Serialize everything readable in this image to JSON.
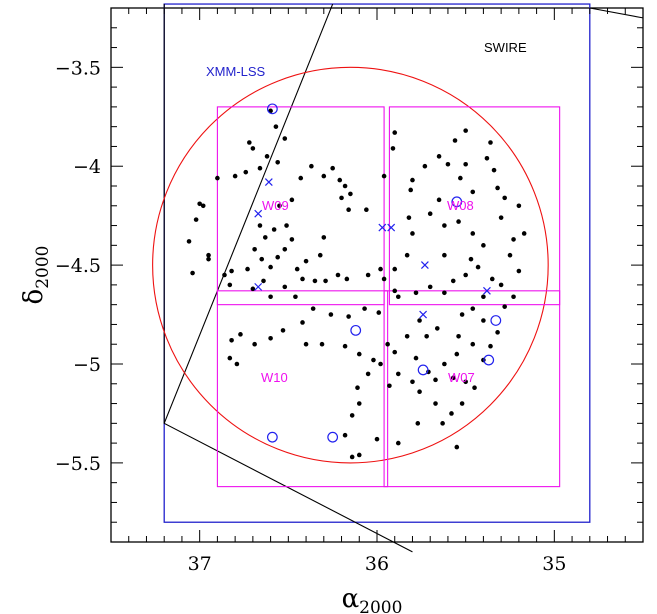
{
  "chart_data": {
    "type": "scatter",
    "x_axis": {
      "symbol": "α",
      "subscript": "2000",
      "range": [
        37.5,
        34.5
      ],
      "tick_values": [
        37,
        36,
        35
      ],
      "tick_labels": [
        "37",
        "36",
        "35"
      ]
    },
    "y_axis": {
      "symbol": "δ",
      "subscript": "2000",
      "range": [
        -5.9,
        -3.2
      ],
      "tick_values": [
        -3.5,
        -4,
        -4.5,
        -5,
        -5.5
      ],
      "tick_labels": [
        "−3.5",
        "−4",
        "−4.5",
        "−5",
        "−5.5"
      ]
    },
    "grid": false,
    "regions": [
      {
        "label": "XMM-LSS",
        "color": "#2222cc",
        "ra": [
          37.2,
          34.8
        ],
        "dec": [
          -5.8,
          -3.18
        ]
      },
      {
        "label": "SWIRE",
        "color": "#000000",
        "polygon": [
          [
            37.2,
            -3.18
          ],
          [
            37.2,
            -5.3
          ],
          [
            35.8,
            -5.95
          ]
        ],
        "line_upper": [
          [
            36.25,
            -3.18
          ],
          [
            37.2,
            -5.3
          ]
        ],
        "line_right": [
          [
            34.8,
            -3.2
          ],
          [
            34.5,
            -3.25
          ]
        ]
      }
    ],
    "circle": {
      "center": [
        36.15,
        -4.5
      ],
      "radius_dec": 1.0,
      "color": "#ee1111"
    },
    "pointings": [
      {
        "label": "W09",
        "ra": [
          36.9,
          35.96
        ],
        "dec": [
          -4.7,
          -3.7
        ]
      },
      {
        "label": "W08",
        "ra": [
          35.93,
          34.97
        ],
        "dec": [
          -4.7,
          -3.7
        ]
      },
      {
        "label": "W10",
        "ra": [
          36.9,
          35.94
        ],
        "dec": [
          -5.62,
          -4.63
        ]
      },
      {
        "label": "W07",
        "ra": [
          35.96,
          34.97
        ],
        "dec": [
          -5.62,
          -4.63
        ]
      }
    ],
    "pointing_color": "#ee11ee",
    "labels": {
      "xmm": "XMM-LSS",
      "swire": "SWIRE",
      "w09": "W09",
      "w08": "W08",
      "w10": "W10",
      "w07": "W07"
    },
    "series": [
      {
        "marker": "dot",
        "color": "#000000",
        "points": [
          [
            36.6,
            -3.72
          ],
          [
            36.57,
            -3.8
          ],
          [
            36.52,
            -3.86
          ],
          [
            36.72,
            -3.88
          ],
          [
            36.7,
            -3.91
          ],
          [
            36.62,
            -3.95
          ],
          [
            36.56,
            -3.98
          ],
          [
            36.66,
            -4.01
          ],
          [
            36.74,
            -4.03
          ],
          [
            36.8,
            -4.05
          ],
          [
            36.9,
            -4.06
          ],
          [
            36.98,
            -4.2
          ],
          [
            37.02,
            -4.27
          ],
          [
            37.06,
            -4.38
          ],
          [
            36.95,
            -4.47
          ],
          [
            36.86,
            -4.55
          ],
          [
            36.82,
            -4.53
          ],
          [
            36.73,
            -4.52
          ],
          [
            36.69,
            -4.42
          ],
          [
            36.65,
            -4.47
          ],
          [
            36.6,
            -4.51
          ],
          [
            36.56,
            -4.46
          ],
          [
            36.52,
            -4.42
          ],
          [
            36.48,
            -4.37
          ],
          [
            36.51,
            -4.3
          ],
          [
            36.66,
            -4.3
          ],
          [
            36.63,
            -4.36
          ],
          [
            36.58,
            -4.32
          ],
          [
            36.55,
            -4.2
          ],
          [
            36.48,
            -4.17
          ],
          [
            36.43,
            -4.06
          ],
          [
            36.37,
            -4.0
          ],
          [
            36.3,
            -4.05
          ],
          [
            36.25,
            -4.01
          ],
          [
            36.21,
            -4.07
          ],
          [
            36.18,
            -4.1
          ],
          [
            36.2,
            -4.16
          ],
          [
            36.16,
            -4.22
          ],
          [
            36.15,
            -4.14
          ],
          [
            36.06,
            -4.22
          ],
          [
            35.96,
            -4.05
          ],
          [
            36.3,
            -4.36
          ],
          [
            36.32,
            -4.45
          ],
          [
            36.4,
            -4.48
          ],
          [
            36.45,
            -4.52
          ],
          [
            36.42,
            -4.57
          ],
          [
            36.35,
            -4.58
          ],
          [
            36.29,
            -4.58
          ],
          [
            36.22,
            -4.55
          ],
          [
            36.17,
            -4.57
          ],
          [
            36.05,
            -4.55
          ],
          [
            35.98,
            -4.52
          ],
          [
            35.96,
            -4.57
          ],
          [
            36.83,
            -4.6
          ],
          [
            36.7,
            -4.62
          ],
          [
            36.64,
            -4.58
          ],
          [
            36.52,
            -4.61
          ],
          [
            36.6,
            -4.66
          ],
          [
            36.46,
            -4.66
          ],
          [
            36.36,
            -4.72
          ],
          [
            36.26,
            -4.75
          ],
          [
            36.16,
            -4.76
          ],
          [
            36.07,
            -4.72
          ],
          [
            35.99,
            -4.74
          ],
          [
            35.9,
            -4.63
          ],
          [
            35.88,
            -4.66
          ],
          [
            35.78,
            -4.64
          ],
          [
            35.7,
            -4.61
          ],
          [
            35.62,
            -4.64
          ],
          [
            35.57,
            -4.58
          ],
          [
            35.5,
            -4.55
          ],
          [
            35.47,
            -4.47
          ],
          [
            35.43,
            -4.51
          ],
          [
            35.35,
            -4.57
          ],
          [
            35.3,
            -4.6
          ],
          [
            35.4,
            -4.66
          ],
          [
            35.46,
            -4.72
          ],
          [
            35.52,
            -4.75
          ],
          [
            35.4,
            -4.78
          ],
          [
            35.28,
            -4.71
          ],
          [
            35.23,
            -4.66
          ],
          [
            35.2,
            -4.53
          ],
          [
            35.25,
            -4.45
          ],
          [
            35.23,
            -4.37
          ],
          [
            35.17,
            -4.34
          ],
          [
            35.2,
            -4.2
          ],
          [
            35.28,
            -4.16
          ],
          [
            35.32,
            -4.11
          ],
          [
            35.34,
            -4.02
          ],
          [
            35.38,
            -3.96
          ],
          [
            35.36,
            -3.88
          ],
          [
            35.46,
            -4.13
          ],
          [
            35.53,
            -4.06
          ],
          [
            35.5,
            -3.99
          ],
          [
            35.6,
            -3.99
          ],
          [
            35.65,
            -3.95
          ],
          [
            35.73,
            -4.0
          ],
          [
            35.8,
            -4.07
          ],
          [
            35.81,
            -4.12
          ],
          [
            35.65,
            -4.17
          ],
          [
            35.7,
            -4.24
          ],
          [
            35.62,
            -4.3
          ],
          [
            35.54,
            -4.28
          ],
          [
            35.46,
            -4.34
          ],
          [
            35.3,
            -4.26
          ],
          [
            35.4,
            -4.4
          ],
          [
            35.62,
            -4.45
          ],
          [
            35.83,
            -4.45
          ],
          [
            35.9,
            -4.52
          ],
          [
            35.8,
            -4.34
          ],
          [
            35.82,
            -4.26
          ],
          [
            35.9,
            -3.83
          ],
          [
            35.91,
            -3.91
          ],
          [
            35.56,
            -3.87
          ],
          [
            35.5,
            -3.82
          ],
          [
            35.32,
            -4.84
          ],
          [
            35.36,
            -4.91
          ],
          [
            35.4,
            -4.98
          ],
          [
            35.46,
            -4.9
          ],
          [
            35.54,
            -4.86
          ],
          [
            35.55,
            -4.95
          ],
          [
            35.62,
            -5.0
          ],
          [
            35.66,
            -4.82
          ],
          [
            35.72,
            -4.86
          ],
          [
            35.76,
            -4.78
          ],
          [
            35.83,
            -4.86
          ],
          [
            35.9,
            -4.94
          ],
          [
            35.94,
            -4.9
          ],
          [
            35.78,
            -4.97
          ],
          [
            35.71,
            -5.04
          ],
          [
            35.67,
            -5.08
          ],
          [
            35.57,
            -5.07
          ],
          [
            35.5,
            -5.09
          ],
          [
            35.45,
            -5.12
          ],
          [
            35.52,
            -5.2
          ],
          [
            35.58,
            -5.25
          ],
          [
            35.67,
            -5.2
          ],
          [
            35.76,
            -5.14
          ],
          [
            35.8,
            -5.09
          ],
          [
            35.88,
            -5.05
          ],
          [
            35.93,
            -5.11
          ],
          [
            35.98,
            -5.0
          ],
          [
            36.02,
            -4.98
          ],
          [
            36.1,
            -4.95
          ],
          [
            36.18,
            -4.91
          ],
          [
            36.05,
            -5.05
          ],
          [
            36.11,
            -5.12
          ],
          [
            36.1,
            -5.2
          ],
          [
            36.14,
            -5.26
          ],
          [
            36.18,
            -5.36
          ],
          [
            36.0,
            -5.38
          ],
          [
            35.88,
            -5.4
          ],
          [
            35.77,
            -5.3
          ],
          [
            35.63,
            -5.3
          ],
          [
            35.55,
            -5.42
          ],
          [
            36.1,
            -5.46
          ],
          [
            36.14,
            -5.47
          ],
          [
            36.6,
            -4.87
          ],
          [
            36.53,
            -4.83
          ],
          [
            36.4,
            -4.9
          ],
          [
            36.31,
            -4.9
          ],
          [
            36.42,
            -4.79
          ],
          [
            36.69,
            -4.9
          ],
          [
            36.77,
            -4.85
          ],
          [
            36.82,
            -4.88
          ],
          [
            36.83,
            -4.97
          ],
          [
            36.79,
            -5.0
          ],
          [
            37.04,
            -4.54
          ],
          [
            36.95,
            -4.45
          ],
          [
            37.0,
            -4.19
          ]
        ]
      },
      {
        "marker": "open-circle",
        "color": "#2222ee",
        "points": [
          [
            36.59,
            -3.71
          ],
          [
            35.55,
            -4.18
          ],
          [
            36.12,
            -4.83
          ],
          [
            35.33,
            -4.78
          ],
          [
            35.37,
            -4.98
          ],
          [
            35.74,
            -5.03
          ],
          [
            36.59,
            -5.37
          ],
          [
            36.25,
            -5.37
          ]
        ]
      },
      {
        "marker": "cross",
        "color": "#2222ee",
        "points": [
          [
            36.61,
            -4.08
          ],
          [
            36.67,
            -4.24
          ],
          [
            36.67,
            -4.61
          ],
          [
            35.97,
            -4.31
          ],
          [
            35.92,
            -4.31
          ],
          [
            35.73,
            -4.5
          ],
          [
            35.38,
            -4.63
          ],
          [
            35.74,
            -4.75
          ]
        ]
      }
    ]
  }
}
